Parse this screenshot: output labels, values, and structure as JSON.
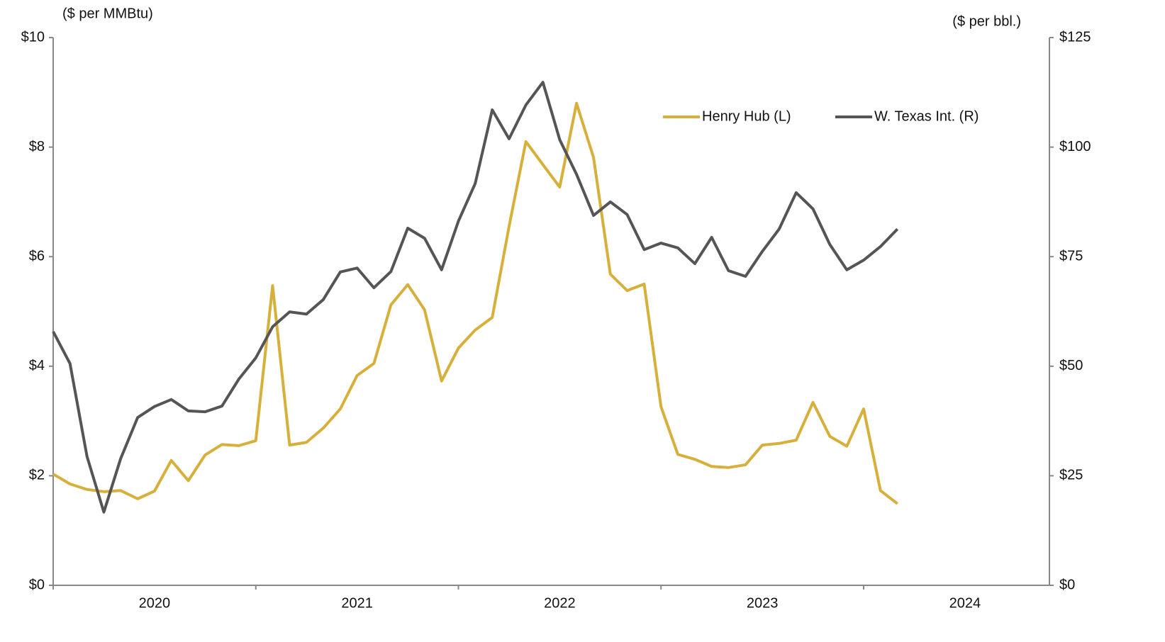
{
  "chart_data": {
    "type": "line",
    "y_axis_label": "($ per MMBtu)",
    "y2_axis_label": "($ per bbl.)",
    "x": [
      2020,
      2020.083,
      2020.167,
      2020.25,
      2020.333,
      2020.417,
      2020.5,
      2020.583,
      2020.667,
      2020.75,
      2020.833,
      2020.917,
      2021,
      2021.083,
      2021.167,
      2021.25,
      2021.333,
      2021.417,
      2021.5,
      2021.583,
      2021.667,
      2021.75,
      2021.833,
      2021.917,
      2022,
      2022.083,
      2022.167,
      2022.25,
      2022.333,
      2022.417,
      2022.5,
      2022.583,
      2022.667,
      2022.75,
      2022.833,
      2022.917,
      2023,
      2023.083,
      2023.167,
      2023.25,
      2023.333,
      2023.417,
      2023.5,
      2023.583,
      2023.667,
      2023.75,
      2023.833,
      2023.917,
      2024,
      2024.083,
      2024.167
    ],
    "xlim": [
      2020,
      2024.917
    ],
    "xticks": [
      {
        "value": 2020.5,
        "label": "2020"
      },
      {
        "value": 2021.5,
        "label": "2021"
      },
      {
        "value": 2022.5,
        "label": "2022"
      },
      {
        "value": 2023.5,
        "label": "2023"
      },
      {
        "value": 2024.5,
        "label": "2024"
      }
    ],
    "ylim": [
      0,
      10
    ],
    "yticks": [
      {
        "value": 0,
        "label": "$0"
      },
      {
        "value": 2,
        "label": "$2"
      },
      {
        "value": 4,
        "label": "$4"
      },
      {
        "value": 6,
        "label": "$6"
      },
      {
        "value": 8,
        "label": "$8"
      },
      {
        "value": 10,
        "label": "$10"
      }
    ],
    "y2lim": [
      0,
      125
    ],
    "y2ticks": [
      {
        "value": 0,
        "label": "$0"
      },
      {
        "value": 25,
        "label": "$25"
      },
      {
        "value": 50,
        "label": "$50"
      },
      {
        "value": 75,
        "label": "$75"
      },
      {
        "value": 100,
        "label": "$100"
      },
      {
        "value": 125,
        "label": "$125"
      }
    ],
    "grid": false,
    "legend": "top-right",
    "series": [
      {
        "name": "Henry Hub (L)",
        "color": "#d6b03a",
        "axis": "y",
        "values": [
          2.03,
          1.85,
          1.75,
          1.71,
          1.73,
          1.58,
          1.72,
          2.28,
          1.91,
          2.38,
          2.57,
          2.55,
          2.64,
          5.47,
          2.56,
          2.61,
          2.87,
          3.22,
          3.83,
          4.05,
          5.12,
          5.49,
          5.03,
          3.73,
          4.33,
          4.66,
          4.89,
          6.55,
          8.1,
          7.68,
          7.27,
          8.8,
          7.81,
          5.68,
          5.38,
          5.5,
          3.26,
          2.39,
          2.3,
          2.17,
          2.15,
          2.2,
          2.56,
          2.59,
          2.65,
          3.34,
          2.72,
          2.54,
          3.22,
          1.73,
          1.49
        ]
      },
      {
        "name": "W. Texas Int. (R)",
        "color": "#555555",
        "axis": "y2",
        "values": [
          57.9,
          50.6,
          29.4,
          16.7,
          28.9,
          38.3,
          40.8,
          42.4,
          39.8,
          39.6,
          40.9,
          47.1,
          51.9,
          59.0,
          62.4,
          61.9,
          65.2,
          71.5,
          72.4,
          67.9,
          71.6,
          81.5,
          79.2,
          72.0,
          83.1,
          91.7,
          108.5,
          101.9,
          109.6,
          114.8,
          101.7,
          93.8,
          84.4,
          87.5,
          84.6,
          76.6,
          78.1,
          77.0,
          73.4,
          79.4,
          71.8,
          70.5,
          76.2,
          81.3,
          89.6,
          85.9,
          77.8,
          72.0,
          74.2,
          77.3,
          81.3
        ]
      }
    ]
  }
}
